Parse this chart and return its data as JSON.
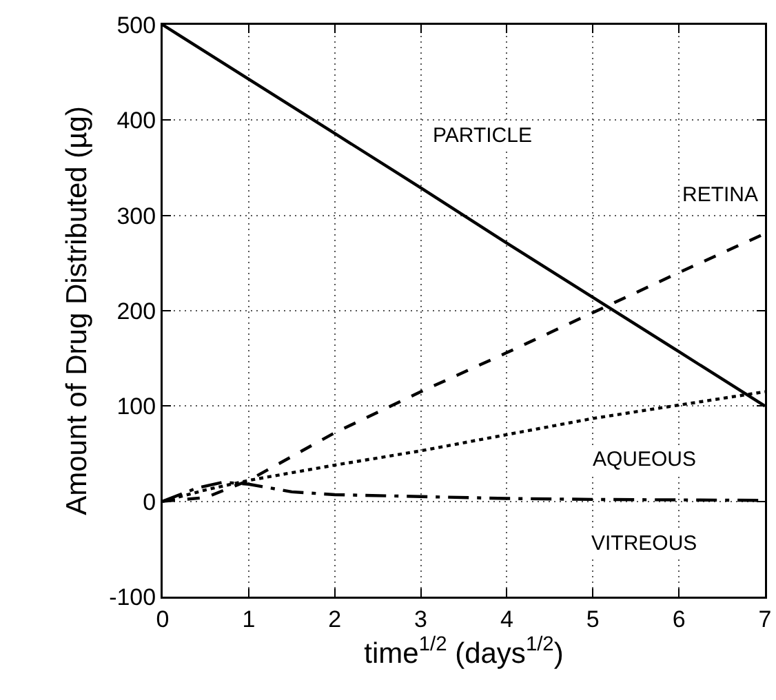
{
  "chart_data": {
    "type": "line",
    "xlabel": "time$^{1/2}$ (days$^{1/2}$)",
    "ylabel": "Amount of Drug Distributed (µg)",
    "xlim": [
      0,
      7
    ],
    "xticks": [
      0,
      1,
      2,
      3,
      4,
      5,
      6,
      7
    ],
    "ylim": [
      -100,
      500
    ],
    "yticks": [
      -100,
      0,
      100,
      200,
      300,
      400,
      500
    ],
    "grid": true,
    "legend": false,
    "series": [
      {
        "name": "PARTICLE",
        "color": "#000000",
        "line_style": "solid",
        "x": [
          0,
          1,
          2,
          3,
          4,
          5,
          6,
          7
        ],
        "values": [
          500,
          443,
          386,
          329,
          271,
          214,
          157,
          100
        ]
      },
      {
        "name": "RETINA",
        "color": "#000000",
        "line_style": "dashed",
        "x": [
          0,
          0.5,
          1,
          2,
          3,
          4,
          5,
          6,
          7
        ],
        "values": [
          0,
          4,
          22,
          72,
          115,
          156,
          198,
          240,
          281
        ]
      },
      {
        "name": "AQUEOUS",
        "color": "#000000",
        "line_style": "dotted",
        "x": [
          0,
          0.5,
          1,
          2,
          3,
          4,
          5,
          6,
          7
        ],
        "values": [
          0,
          12,
          22,
          38,
          53,
          70,
          87,
          101,
          115
        ]
      },
      {
        "name": "VITREOUS",
        "color": "#000000",
        "line_style": "dashdot",
        "x": [
          0,
          0.4,
          0.7,
          1,
          1.5,
          2,
          3,
          4,
          5,
          6,
          7
        ],
        "values": [
          0,
          14,
          20,
          18,
          10,
          7,
          5,
          3,
          2,
          1.5,
          1
        ]
      }
    ]
  }
}
